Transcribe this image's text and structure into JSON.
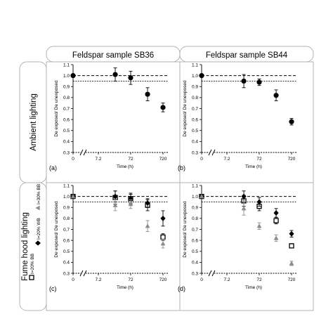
{
  "headers": {
    "col1": "Feldspar sample SB36",
    "col2": "Feldspar sample SB44",
    "row1": "Ambient lighting",
    "row2": "Fume hood lighting"
  },
  "legend_fume": [
    {
      "symbol": "open-square",
      "label": "I=20% BB"
    },
    {
      "symbol": "diamond",
      "label": "I=20% WB"
    },
    {
      "symbol": "triangle",
      "label": "I=30% BB"
    }
  ],
  "colors": {
    "frame": "#b3b3b3",
    "header_fill": "#ffffff",
    "black_series": "#000000",
    "gray_series": "#8c8c8c"
  },
  "chart_data": [
    {
      "panel_label": "(a)",
      "type": "scatter",
      "ylabel": "De exposed/ De unexposed",
      "xlabel": "Time (h)",
      "x_tick_labels": [
        "0",
        "7.2",
        "72",
        "720"
      ],
      "y_tick_labels": [
        "0.3",
        "0.4",
        "0.5",
        "0.6",
        "0.7",
        "0.8",
        "0.9",
        "1.0",
        "1.1"
      ],
      "ylim": [
        0.3,
        1.1
      ],
      "ref_lines": [
        1.0,
        0.95
      ],
      "x_scale": "log10 with axis break; t = 0 shown at the left",
      "series": [
        {
          "marker": "filled-circle",
          "color": "#000000",
          "points": [
            {
              "x": 0,
              "y": 1.0,
              "err": 0
            },
            {
              "x": 24,
              "y": 1.01,
              "err": 0.06
            },
            {
              "x": 72,
              "y": 0.98,
              "err": 0.06
            },
            {
              "x": 240,
              "y": 0.83,
              "err": 0.06
            },
            {
              "x": 720,
              "y": 0.71,
              "err": 0.04
            }
          ]
        }
      ]
    },
    {
      "panel_label": "(b)",
      "type": "scatter",
      "ylabel": "De exposed/ De unexposed",
      "xlabel": "Time (h)",
      "x_tick_labels": [
        "0",
        "7.2",
        "72",
        "720"
      ],
      "y_tick_labels": [
        "0.3",
        "0.4",
        "0.5",
        "0.6",
        "0.7",
        "0.8",
        "0.9",
        "1.0",
        "1.1"
      ],
      "ylim": [
        0.3,
        1.1
      ],
      "ref_lines": [
        1.0,
        0.95
      ],
      "x_scale": "log10 with axis break; t = 0 shown at the left",
      "series": [
        {
          "marker": "filled-circle",
          "color": "#000000",
          "points": [
            {
              "x": 0,
              "y": 1.0,
              "err": 0
            },
            {
              "x": 24,
              "y": 0.95,
              "err": 0.06
            },
            {
              "x": 72,
              "y": 0.94,
              "err": 0.03
            },
            {
              "x": 240,
              "y": 0.82,
              "err": 0.05
            },
            {
              "x": 720,
              "y": 0.58,
              "err": 0.03
            }
          ]
        }
      ]
    },
    {
      "panel_label": "(c)",
      "type": "scatter",
      "ylabel": "De exposed/ De unexposed",
      "xlabel": "Time (h)",
      "x_tick_labels": [
        "0",
        "7.2",
        "72",
        "720"
      ],
      "y_tick_labels": [
        "0.3",
        "0.4",
        "0.5",
        "0.6",
        "0.7",
        "0.8",
        "0.9",
        "1.0",
        "1.1"
      ],
      "ylim": [
        0.3,
        1.1
      ],
      "ref_lines": [
        1.0,
        0.95
      ],
      "x_scale": "log10 with axis break; t = 0 shown at the left",
      "series": [
        {
          "name": "I=20% BB",
          "marker": "open-square",
          "color": "#000000",
          "points": [
            {
              "x": 0,
              "y": 1.0,
              "err": 0
            },
            {
              "x": 24,
              "y": 0.99,
              "err": 0.06
            },
            {
              "x": 72,
              "y": 0.98,
              "err": 0.05
            },
            {
              "x": 240,
              "y": 0.92,
              "err": 0.05
            },
            {
              "x": 720,
              "y": 0.63,
              "err": 0.03
            }
          ]
        },
        {
          "name": "I=20% WB",
          "marker": "diamond",
          "color": "#000000",
          "points": [
            {
              "x": 0,
              "y": 1.0,
              "err": 0
            },
            {
              "x": 24,
              "y": 1.0,
              "err": 0.05
            },
            {
              "x": 72,
              "y": 0.98,
              "err": 0.04
            },
            {
              "x": 240,
              "y": 0.94,
              "err": 0.04
            },
            {
              "x": 720,
              "y": 0.8,
              "err": 0.07
            }
          ]
        },
        {
          "name": "I=30% BB",
          "marker": "triangle",
          "color": "#8c8c8c",
          "points": [
            {
              "x": 0,
              "y": 1.0,
              "err": 0
            },
            {
              "x": 24,
              "y": 0.92,
              "err": 0.05
            },
            {
              "x": 72,
              "y": 0.93,
              "err": 0.04
            },
            {
              "x": 240,
              "y": 0.73,
              "err": 0.05
            },
            {
              "x": 720,
              "y": 0.57,
              "err": 0.04
            }
          ]
        }
      ]
    },
    {
      "panel_label": "(d)",
      "type": "scatter",
      "ylabel": "De exposed/ De unexposed",
      "xlabel": "Time (h)",
      "x_tick_labels": [
        "0",
        "7.2",
        "72",
        "720"
      ],
      "y_tick_labels": [
        "0.3",
        "0.4",
        "0.5",
        "0.6",
        "0.7",
        "0.8",
        "0.9",
        "1.0",
        "1.1"
      ],
      "ylim": [
        0.3,
        1.1
      ],
      "ref_lines": [
        1.0,
        0.95
      ],
      "x_scale": "log10 with axis break; t = 0 shown at the left",
      "series": [
        {
          "name": "I=20% BB",
          "marker": "open-square",
          "color": "#000000",
          "points": [
            {
              "x": 0,
              "y": 1.0,
              "err": 0
            },
            {
              "x": 24,
              "y": 0.96,
              "err": 0.05
            },
            {
              "x": 72,
              "y": 0.91,
              "err": 0.04
            },
            {
              "x": 240,
              "y": 0.78,
              "err": 0.03
            },
            {
              "x": 720,
              "y": 0.55,
              "err": 0.02
            }
          ]
        },
        {
          "name": "I=20% WB",
          "marker": "diamond",
          "color": "#000000",
          "points": [
            {
              "x": 0,
              "y": 1.0,
              "err": 0
            },
            {
              "x": 24,
              "y": 1.0,
              "err": 0.05
            },
            {
              "x": 72,
              "y": 0.95,
              "err": 0.04
            },
            {
              "x": 240,
              "y": 0.85,
              "err": 0.04
            },
            {
              "x": 720,
              "y": 0.66,
              "err": 0.03
            }
          ]
        },
        {
          "name": "I=30% BB",
          "marker": "triangle",
          "color": "#8c8c8c",
          "points": [
            {
              "x": 0,
              "y": 1.0,
              "err": 0
            },
            {
              "x": 24,
              "y": 0.89,
              "err": 0.06
            },
            {
              "x": 72,
              "y": 0.73,
              "err": 0.03
            },
            {
              "x": 240,
              "y": 0.62,
              "err": 0.03
            },
            {
              "x": 720,
              "y": 0.39,
              "err": 0.02
            }
          ]
        }
      ]
    }
  ]
}
